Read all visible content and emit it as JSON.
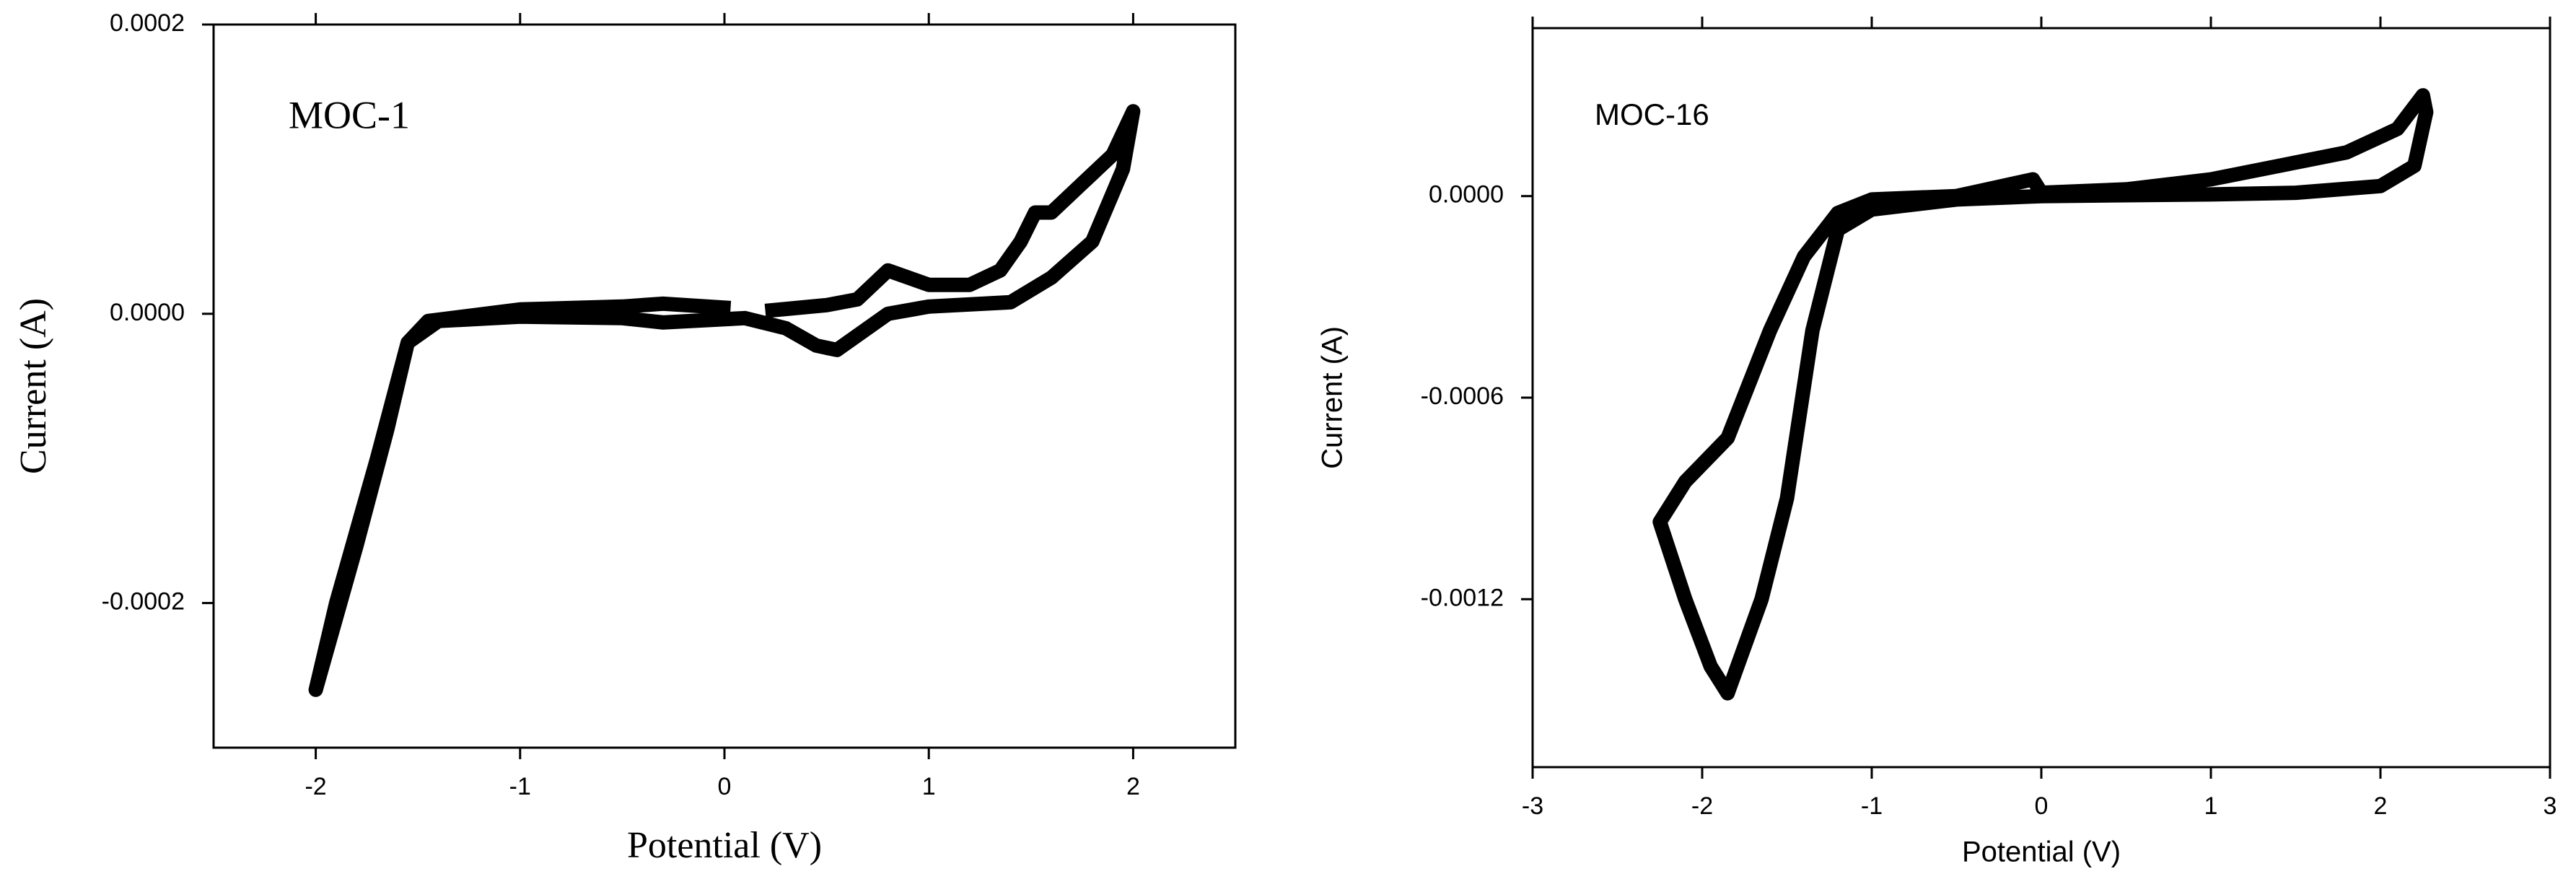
{
  "chart_data": [
    {
      "type": "line",
      "annotation": "MOC-1",
      "xlabel": "Potential (V)",
      "ylabel": "Current (A)",
      "color": "#000000",
      "xlim": [
        -2.5,
        2.5
      ],
      "xticks": [
        -2,
        -1,
        0,
        1,
        2
      ],
      "ylim": [
        -0.0003,
        0.0002
      ],
      "yticks": [
        {
          "value": -0.0002,
          "label": "-0.0002"
        },
        {
          "value": 0,
          "label": "0.0000"
        },
        {
          "value": 0.0002,
          "label": "0.0002"
        }
      ],
      "x": [
        0.2,
        0.5,
        0.65,
        0.8,
        0.9,
        1.0,
        1.2,
        1.35,
        1.45,
        1.52,
        1.6,
        1.75,
        1.9,
        2.0,
        1.95,
        1.8,
        1.6,
        1.4,
        1.0,
        0.8,
        0.55,
        0.45,
        0.3,
        0.1,
        -0.3,
        -0.5,
        -1.0,
        -1.4,
        -1.55,
        -1.65,
        -1.8,
        -2.0,
        -1.9,
        -1.7,
        -1.55,
        -1.45,
        -1.0,
        -0.5,
        -0.3,
        0.03
      ],
      "values": [
        2e-06,
        6e-06,
        1e-05,
        3e-05,
        2.5e-05,
        2e-05,
        2e-05,
        3e-05,
        5e-05,
        7e-05,
        7e-05,
        9e-05,
        0.00011,
        0.00014,
        0.0001,
        5e-05,
        2.5e-05,
        8e-06,
        5e-06,
        0,
        -2.5e-05,
        -2.2e-05,
        -1e-05,
        -3e-06,
        -6e-06,
        -3e-06,
        -2e-06,
        -5e-06,
        -2e-05,
        -8e-05,
        -0.00016,
        -0.00026,
        -0.0002,
        -0.0001,
        -2e-05,
        -5e-06,
        3e-06,
        5e-06,
        7e-06,
        4e-06
      ]
    },
    {
      "type": "line",
      "annotation": "MOC-16",
      "xlabel": "Potential (V)",
      "ylabel": "Current (A)",
      "color": "#000000",
      "xlim": [
        -3,
        3
      ],
      "xticks": [
        -3,
        -2,
        -1,
        0,
        1,
        2,
        3
      ],
      "ylim": [
        -0.0017,
        0.0005
      ],
      "yticks": [
        {
          "value": -0.0012,
          "label": "-0.0012"
        },
        {
          "value": -0.0006,
          "label": "-0.0006"
        },
        {
          "value": 0,
          "label": "0.0000"
        }
      ],
      "x": [
        0,
        0.5,
        1,
        1.5,
        1.8,
        2.1,
        2.25,
        2.27,
        2.2,
        2.0,
        1.5,
        1,
        0,
        -0.5,
        -1.0,
        -1.2,
        -1.35,
        -1.5,
        -1.65,
        -1.85,
        -1.95,
        -2.1,
        -2.25,
        -2.1,
        -1.85,
        -1.6,
        -1.4,
        -1.2,
        -1.0,
        -0.5,
        -0.05,
        0
      ],
      "values": [
        1e-05,
        2e-05,
        5e-05,
        0.0001,
        0.00013,
        0.0002,
        0.0003,
        0.00025,
        9e-05,
        3e-05,
        1e-05,
        5e-06,
        0,
        -1e-05,
        -4e-05,
        -0.0001,
        -0.0004,
        -0.0009,
        -0.0012,
        -0.00148,
        -0.0014,
        -0.0012,
        -0.00097,
        -0.00085,
        -0.00072,
        -0.0004,
        -0.00018,
        -5e-05,
        -1e-05,
        0,
        5e-05,
        1e-05
      ]
    }
  ]
}
